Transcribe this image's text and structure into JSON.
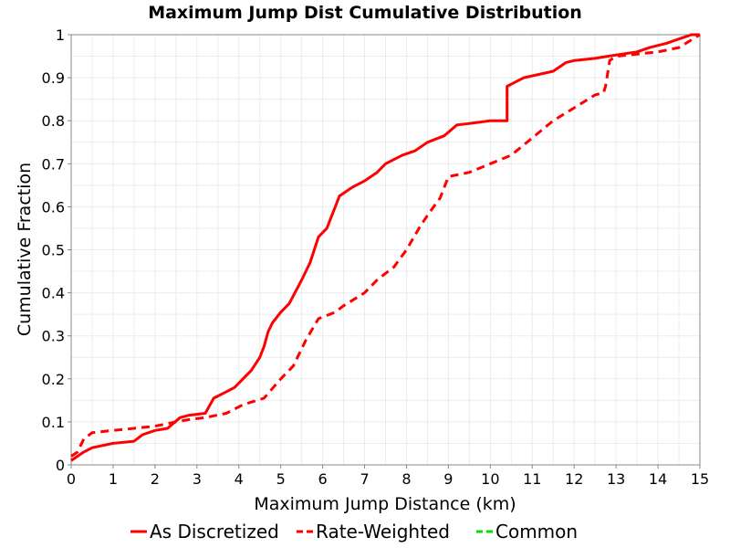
{
  "chart_data": {
    "type": "line",
    "title": "Maximum Jump Dist Cumulative Distribution",
    "xlabel": "Maximum Jump Distance (km)",
    "ylabel": "Cumulative Fraction",
    "xlim": [
      0,
      15
    ],
    "ylim": [
      0,
      1
    ],
    "x_ticks": [
      "0",
      "1",
      "2",
      "3",
      "4",
      "5",
      "6",
      "7",
      "8",
      "9",
      "10",
      "11",
      "12",
      "13",
      "14",
      "15"
    ],
    "y_ticks": [
      "0",
      "0.1",
      "0.2",
      "0.3",
      "0.4",
      "0.5",
      "0.6",
      "0.7",
      "0.8",
      "0.9",
      "1"
    ],
    "grid": true,
    "legend_position": "bottom",
    "series": [
      {
        "name": "As Discretized",
        "color": "#ff0000",
        "dash": "solid",
        "x": [
          0,
          0.3,
          0.5,
          1.0,
          1.5,
          1.7,
          2.0,
          2.3,
          2.6,
          2.8,
          3.2,
          3.4,
          3.6,
          3.9,
          4.1,
          4.3,
          4.5,
          4.6,
          4.7,
          4.8,
          5.0,
          5.2,
          5.5,
          5.7,
          5.9,
          6.1,
          6.3,
          6.4,
          6.7,
          7.0,
          7.3,
          7.5,
          7.9,
          8.2,
          8.5,
          8.9,
          9.2,
          9.6,
          10.0,
          10.4,
          10.4,
          10.8,
          11.5,
          11.8,
          12.0,
          12.5,
          12.8,
          13.5,
          13.8,
          14.2,
          14.5,
          14.8,
          15.0
        ],
        "y": [
          0.01,
          0.03,
          0.04,
          0.05,
          0.055,
          0.07,
          0.08,
          0.085,
          0.11,
          0.115,
          0.12,
          0.155,
          0.165,
          0.18,
          0.2,
          0.22,
          0.25,
          0.275,
          0.31,
          0.33,
          0.355,
          0.375,
          0.43,
          0.47,
          0.53,
          0.55,
          0.6,
          0.625,
          0.645,
          0.66,
          0.68,
          0.7,
          0.72,
          0.73,
          0.75,
          0.765,
          0.79,
          0.795,
          0.8,
          0.8,
          0.88,
          0.9,
          0.915,
          0.935,
          0.94,
          0.945,
          0.95,
          0.96,
          0.97,
          0.98,
          0.99,
          1.0,
          1.0
        ]
      },
      {
        "name": "Rate-Weighted",
        "color": "#ff0000",
        "dash": "dashed",
        "x": [
          0,
          0.15,
          0.3,
          0.5,
          1.0,
          1.5,
          2.0,
          2.5,
          2.8,
          3.2,
          3.7,
          4.1,
          4.6,
          5.0,
          5.3,
          5.6,
          5.9,
          6.3,
          6.5,
          7.0,
          7.3,
          7.7,
          8.0,
          8.3,
          8.5,
          8.8,
          9.0,
          9.5,
          10.0,
          10.5,
          11.0,
          11.5,
          12.0,
          12.5,
          12.7,
          12.75,
          12.85,
          13.0,
          13.5,
          14.0,
          14.5,
          15.0
        ],
        "y": [
          0.02,
          0.03,
          0.06,
          0.075,
          0.08,
          0.085,
          0.09,
          0.1,
          0.105,
          0.11,
          0.12,
          0.14,
          0.155,
          0.2,
          0.23,
          0.29,
          0.34,
          0.355,
          0.37,
          0.4,
          0.43,
          0.46,
          0.5,
          0.55,
          0.58,
          0.62,
          0.67,
          0.68,
          0.7,
          0.72,
          0.76,
          0.8,
          0.83,
          0.86,
          0.865,
          0.88,
          0.94,
          0.95,
          0.955,
          0.96,
          0.97,
          1.0
        ]
      },
      {
        "name": "Common",
        "color": "#00e000",
        "dash": "dashed",
        "x": [],
        "y": []
      }
    ]
  }
}
